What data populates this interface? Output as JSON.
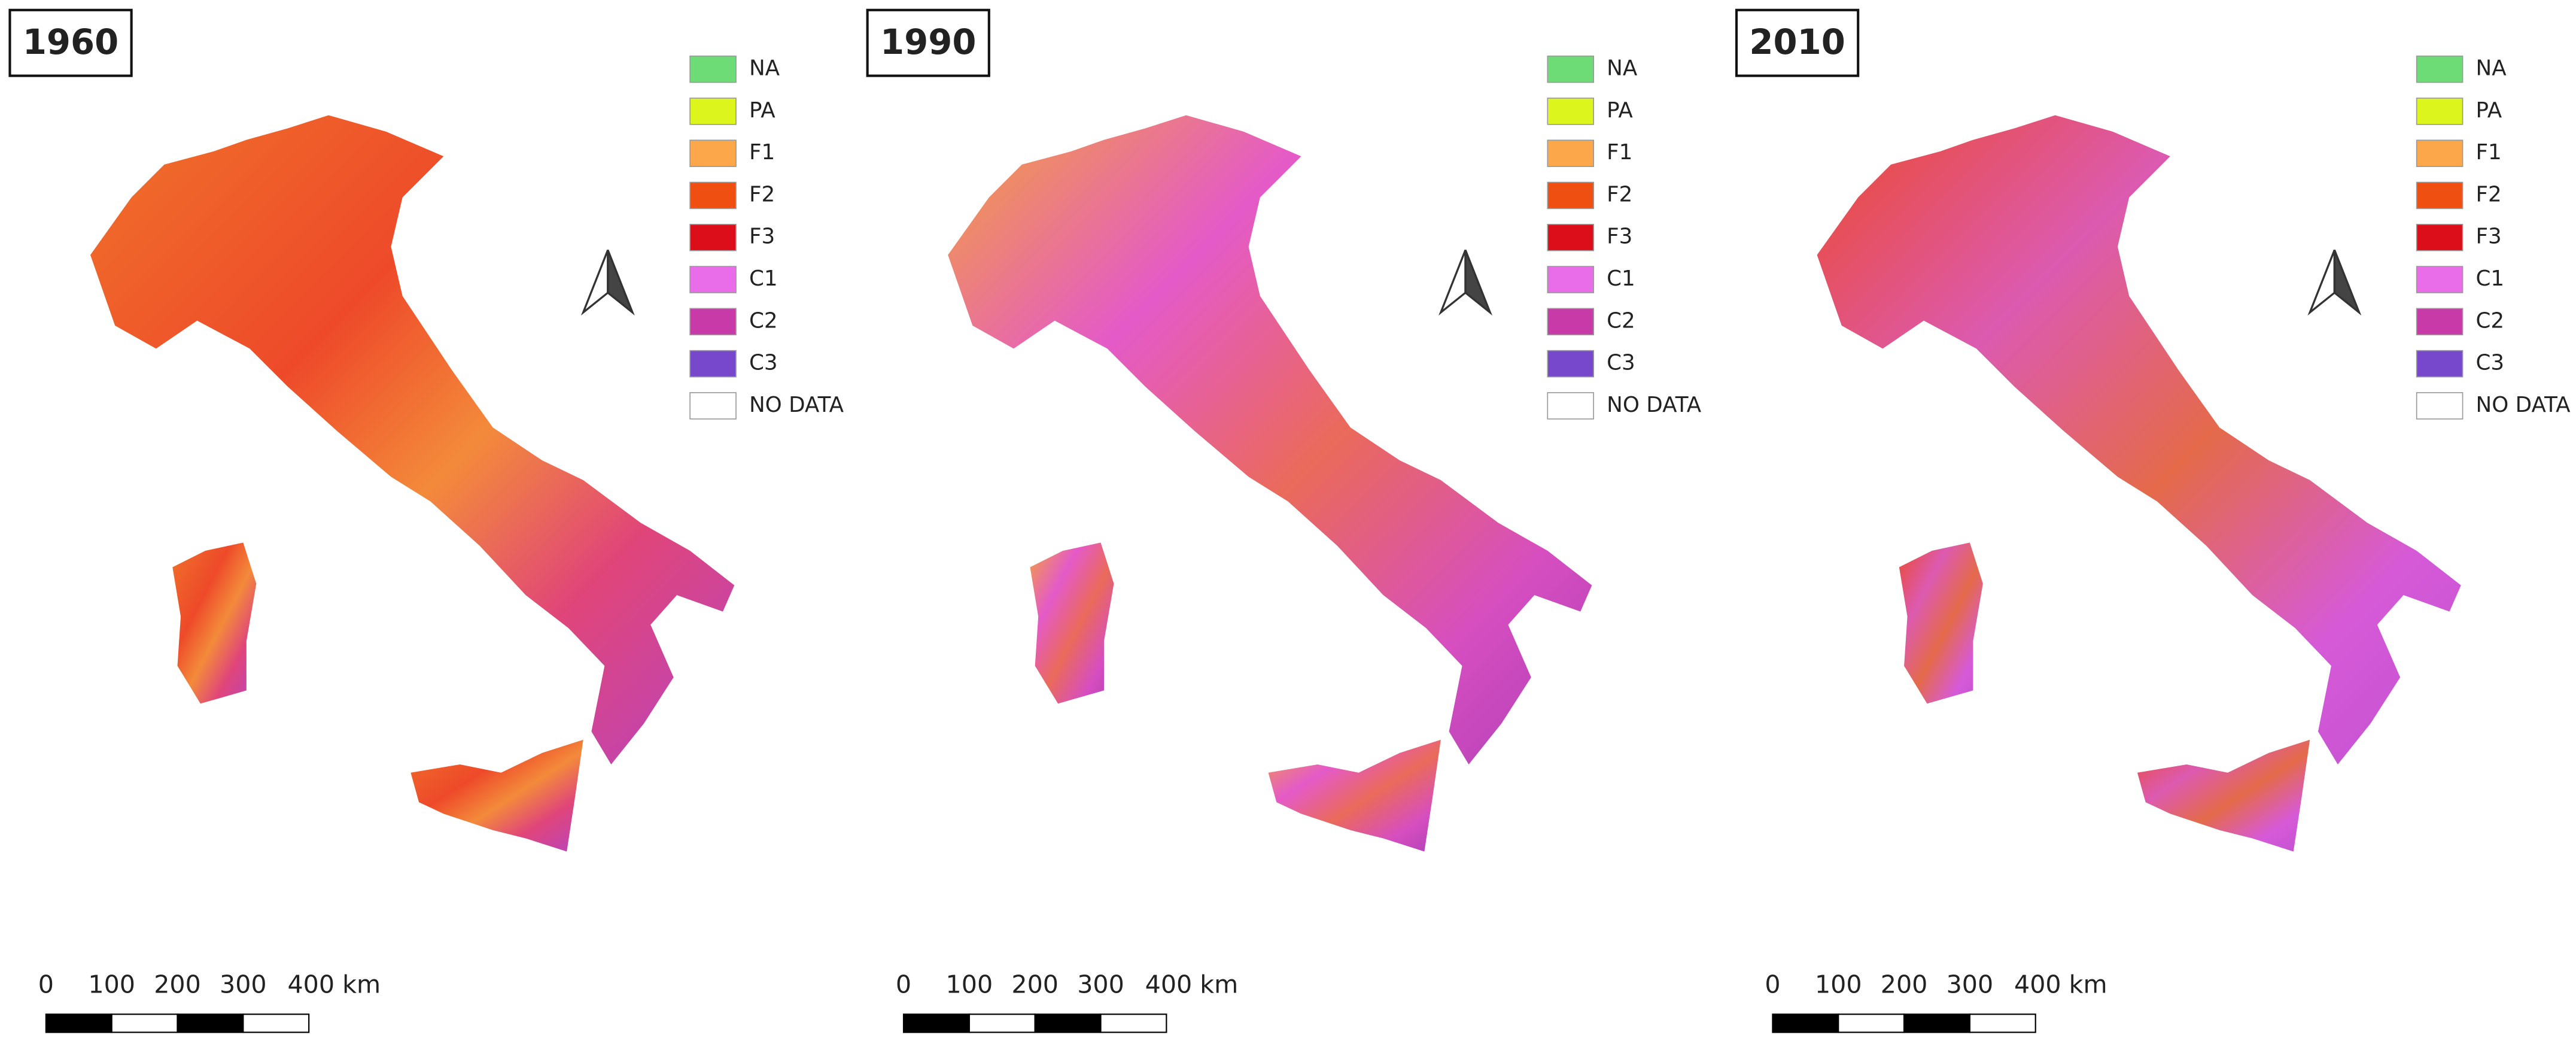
{
  "panels": [
    {
      "title": "1960",
      "legend": [
        {
          "label": "NA",
          "color": "#6ddc76"
        },
        {
          "label": "PA",
          "color": "#dcf51c"
        },
        {
          "label": "F1",
          "color": "#fca84a"
        },
        {
          "label": "F2",
          "color": "#ef4f11"
        },
        {
          "label": "F3",
          "color": "#dc0e1a"
        },
        {
          "label": "C1",
          "color": "#e96ce9"
        },
        {
          "label": "C2",
          "color": "#c83aa8"
        },
        {
          "label": "C3",
          "color": "#7747cc"
        },
        {
          "label": "NO DATA",
          "color": "#ffffff"
        }
      ],
      "scale_bar": [
        "0",
        "100",
        "200",
        "300",
        "400 km"
      ]
    },
    {
      "title": "1990",
      "legend": [
        {
          "label": "NA",
          "color": "#6ddc76"
        },
        {
          "label": "PA",
          "color": "#dcf51c"
        },
        {
          "label": "F1",
          "color": "#fca84a"
        },
        {
          "label": "F2",
          "color": "#ef4f11"
        },
        {
          "label": "F3",
          "color": "#dc0e1a"
        },
        {
          "label": "C1",
          "color": "#e96ce9"
        },
        {
          "label": "C2",
          "color": "#c83aa8"
        },
        {
          "label": "C3",
          "color": "#7747cc"
        },
        {
          "label": "NO DATA",
          "color": "#ffffff"
        }
      ],
      "scale_bar": [
        "0",
        "100",
        "200",
        "300",
        "400 km"
      ]
    },
    {
      "title": "2010",
      "legend": [
        {
          "label": "NA",
          "color": "#6ddc76"
        },
        {
          "label": "PA",
          "color": "#dcf51c"
        },
        {
          "label": "F1",
          "color": "#fca84a"
        },
        {
          "label": "F2",
          "color": "#ef4f11"
        },
        {
          "label": "F3",
          "color": "#dc0e1a"
        },
        {
          "label": "C1",
          "color": "#e96ce9"
        },
        {
          "label": "C2",
          "color": "#c83aa8"
        },
        {
          "label": "C3",
          "color": "#7747cc"
        },
        {
          "label": "NO DATA",
          "color": "#ffffff"
        }
      ],
      "scale_bar": [
        "0",
        "100",
        "200",
        "300",
        "400 km"
      ]
    }
  ]
}
